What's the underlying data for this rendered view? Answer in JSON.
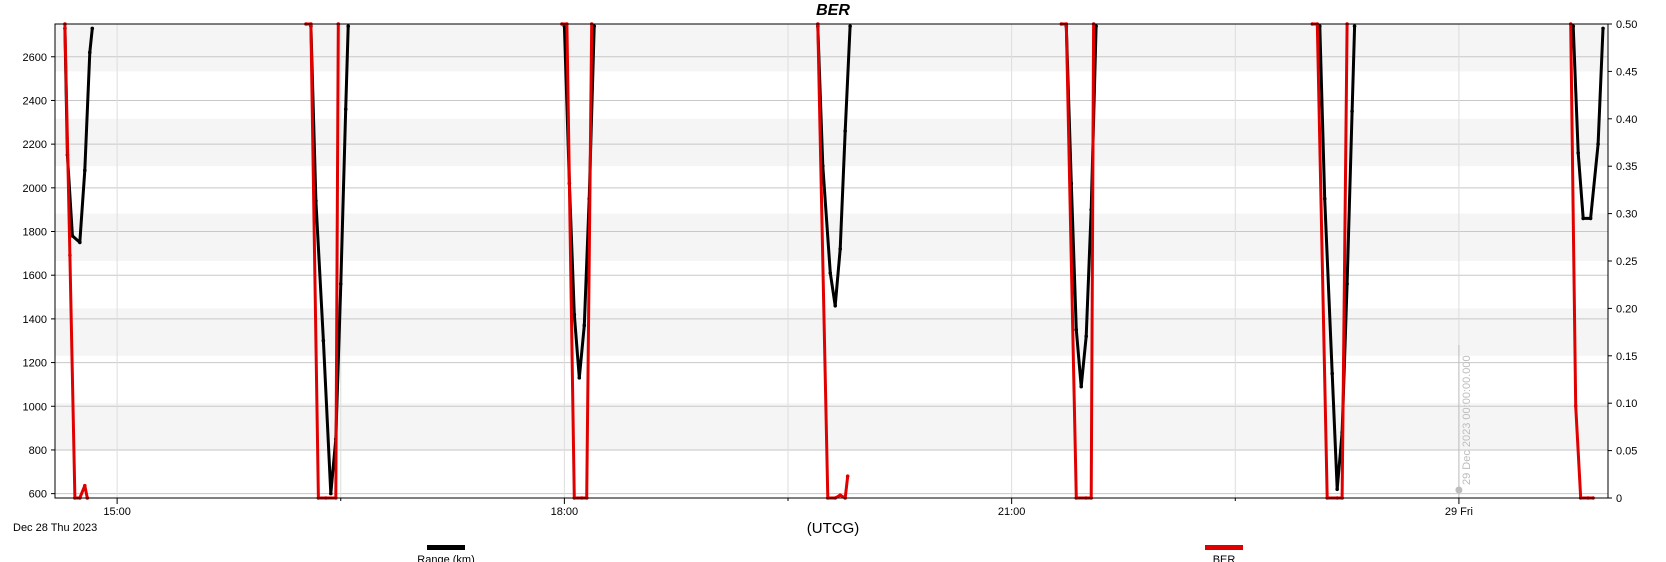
{
  "chart_data": {
    "type": "line",
    "title": "BER",
    "xlabel": "(UTCG)",
    "date_label": "Dec 28 Thu 2023",
    "x_unit": "minutes after Dec 28 2023 15:00 UTCG",
    "x_ticks": [
      {
        "x": 0,
        "label": "15:00"
      },
      {
        "x": 180,
        "label": "18:00"
      },
      {
        "x": 360,
        "label": "21:00"
      },
      {
        "x": 540,
        "label": "29 Fri"
      }
    ],
    "xlim": [
      -25,
      600
    ],
    "y_left": {
      "label": "Range (km)",
      "lim": [
        580,
        2750
      ],
      "ticks": [
        600,
        800,
        1000,
        1200,
        1400,
        1600,
        1800,
        2000,
        2200,
        2400,
        2600
      ]
    },
    "y_right": {
      "label": "BER",
      "lim": [
        0,
        0.5
      ],
      "ticks": [
        "0",
        "0.05",
        "0.10",
        "0.15",
        "0.20",
        "0.25",
        "0.30",
        "0.35",
        "0.40",
        "0.45",
        "0.50"
      ]
    },
    "grid": true,
    "legend": "bottom",
    "series": [
      {
        "name": "Range (km)",
        "axis": "left",
        "color": "#000000",
        "segments": [
          [
            [
              -21,
              2730
            ],
            [
              -20,
              2150
            ],
            [
              -18,
              1780
            ],
            [
              -15,
              1750
            ],
            [
              -13,
              2080
            ],
            [
              -11,
              2620
            ],
            [
              -10,
              2730
            ]
          ],
          [
            [
              78,
              2740
            ],
            [
              80,
              1940
            ],
            [
              83,
              1300
            ],
            [
              86,
              600
            ],
            [
              88,
              850
            ],
            [
              90,
              1560
            ],
            [
              92,
              2360
            ],
            [
              93,
              2740
            ]
          ],
          [
            [
              180,
              2740
            ],
            [
              182,
              2020
            ],
            [
              184,
              1420
            ],
            [
              186,
              1130
            ],
            [
              188,
              1370
            ],
            [
              190,
              1950
            ],
            [
              192,
              2740
            ]
          ],
          [
            [
              282,
              2740
            ],
            [
              284,
              2100
            ],
            [
              287,
              1610
            ],
            [
              289,
              1460
            ],
            [
              291,
              1720
            ],
            [
              293,
              2260
            ],
            [
              295,
              2740
            ]
          ],
          [
            [
              382,
              2740
            ],
            [
              384,
              2020
            ],
            [
              386,
              1350
            ],
            [
              388,
              1090
            ],
            [
              390,
              1320
            ],
            [
              392,
              1900
            ],
            [
              394,
              2740
            ]
          ],
          [
            [
              484,
              2740
            ],
            [
              486,
              1950
            ],
            [
              489,
              1150
            ],
            [
              491,
              620
            ],
            [
              493,
              880
            ],
            [
              495,
              1560
            ],
            [
              497,
              2350
            ],
            [
              498,
              2740
            ]
          ],
          [
            [
              586,
              2740
            ],
            [
              588,
              2160
            ],
            [
              590,
              1860
            ],
            [
              593,
              1860
            ],
            [
              596,
              2200
            ],
            [
              598,
              2730
            ]
          ]
        ]
      },
      {
        "name": "BER",
        "axis": "right",
        "color": "#e00000",
        "segments": [
          [
            [
              -21,
              0.5
            ],
            [
              -19,
              0.256
            ],
            [
              -17,
              0.0
            ],
            [
              -15,
              0.0
            ],
            [
              -13,
              0.013
            ],
            [
              -12,
              0.0
            ]
          ],
          [
            [
              76,
              0.5
            ],
            [
              78,
              0.5
            ],
            [
              81,
              0.0
            ],
            [
              84,
              0.0
            ],
            [
              88,
              0.0
            ],
            [
              89,
              0.5
            ]
          ],
          [
            [
              179,
              0.5
            ],
            [
              181,
              0.5
            ],
            [
              184,
              0.0
            ],
            [
              187,
              0.0
            ],
            [
              189,
              0.0
            ],
            [
              191,
              0.5
            ]
          ],
          [
            [
              282,
              0.5
            ],
            [
              286,
              0.0
            ],
            [
              289,
              0.0
            ],
            [
              291,
              0.003
            ],
            [
              293,
              0.0
            ],
            [
              294,
              0.023
            ]
          ],
          [
            [
              380,
              0.5
            ],
            [
              382,
              0.5
            ],
            [
              386,
              0.0
            ],
            [
              390,
              0.0
            ],
            [
              392,
              0.0
            ],
            [
              393,
              0.5
            ]
          ],
          [
            [
              481,
              0.5
            ],
            [
              483,
              0.5
            ],
            [
              487,
              0.0
            ],
            [
              491,
              0.0
            ],
            [
              493,
              0.0
            ],
            [
              495,
              0.5
            ]
          ],
          [
            [
              585,
              0.5
            ],
            [
              587,
              0.097
            ],
            [
              589,
              0.0
            ],
            [
              592,
              0.0
            ],
            [
              594,
              0.0
            ]
          ]
        ]
      }
    ],
    "annotations": [
      {
        "text": "29 Dec 2023 00:00:00.000",
        "x": 540
      }
    ]
  }
}
